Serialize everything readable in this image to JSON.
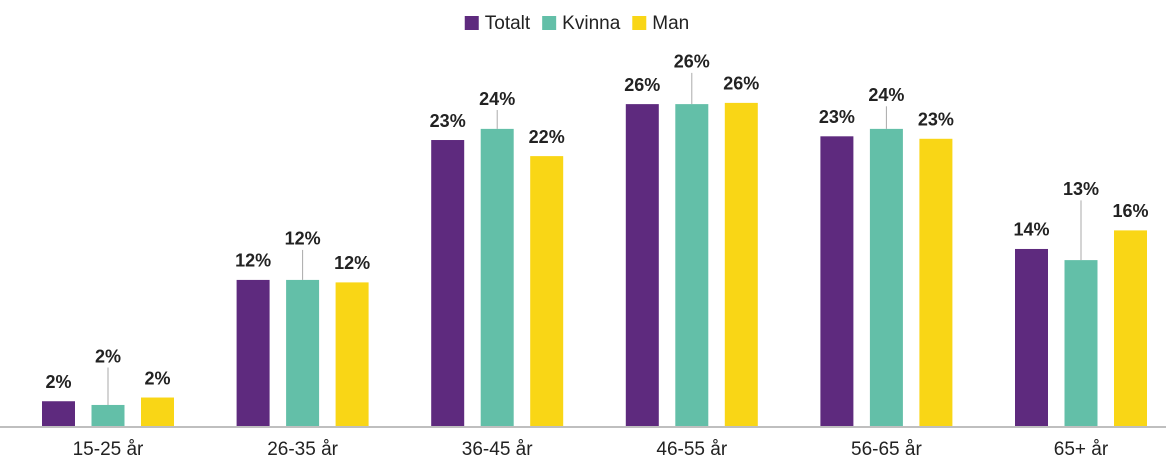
{
  "chart_data": {
    "type": "bar",
    "categories": [
      "15-25 år",
      "26-35 år",
      "36-45 år",
      "46-55 år",
      "56-65 år",
      "65+ år"
    ],
    "series": [
      {
        "name": "Totalt",
        "color": "#5e2a7e",
        "values": [
          2.0,
          11.8,
          23.1,
          26.0,
          23.4,
          14.3
        ],
        "value_labels": [
          "2%",
          "12%",
          "23%",
          "26%",
          "23%",
          "14%"
        ]
      },
      {
        "name": "Kvinna",
        "color": "#63bfa8",
        "values": [
          1.7,
          11.8,
          24.0,
          26.0,
          24.0,
          13.4
        ],
        "value_labels": [
          "2%",
          "12%",
          "24%",
          "26%",
          "24%",
          "13%"
        ]
      },
      {
        "name": "Man",
        "color": "#f9d616",
        "values": [
          2.3,
          11.6,
          21.8,
          26.1,
          23.2,
          15.8
        ],
        "value_labels": [
          "2%",
          "12%",
          "22%",
          "26%",
          "23%",
          "16%"
        ]
      }
    ],
    "legend": "top"
  }
}
